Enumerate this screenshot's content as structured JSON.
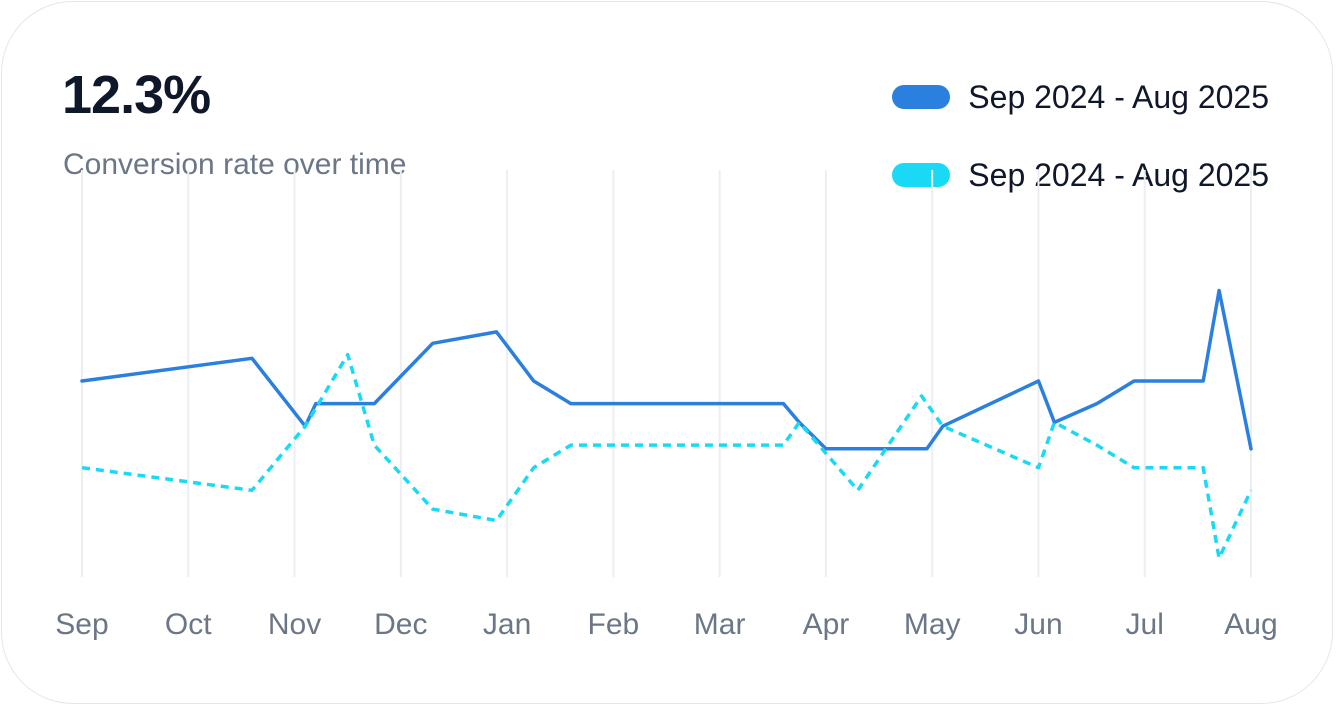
{
  "header": {
    "value": "12.3%",
    "subtitle": "Conversion rate over time"
  },
  "colors": {
    "series_primary": "#2b7fde",
    "series_secondary": "#1ad9f5",
    "grid": "#eceef1",
    "tick_text": "#6b7686"
  },
  "chart_data": {
    "type": "line",
    "x_categories": [
      "Sep",
      "Oct",
      "Nov",
      "Dec",
      "Jan",
      "Feb",
      "Mar",
      "Apr",
      "May",
      "Jun",
      "Jul",
      "Aug"
    ],
    "ylim": [
      0,
      1
    ],
    "grid": "vertical",
    "legend_position": "top-right",
    "series": [
      {
        "name": "Sep 2024 - Aug 2025",
        "style": "solid",
        "color": "#2b7fde",
        "points": [
          {
            "x": 0,
            "y": 0.52
          },
          {
            "x": 1.6,
            "y": 0.58
          },
          {
            "x": 2.1,
            "y": 0.4
          },
          {
            "x": 2.2,
            "y": 0.46
          },
          {
            "x": 2.75,
            "y": 0.46
          },
          {
            "x": 3.3,
            "y": 0.62
          },
          {
            "x": 3.9,
            "y": 0.65
          },
          {
            "x": 4.25,
            "y": 0.52
          },
          {
            "x": 4.6,
            "y": 0.46
          },
          {
            "x": 6.6,
            "y": 0.46
          },
          {
            "x": 6.75,
            "y": 0.41
          },
          {
            "x": 7.0,
            "y": 0.34
          },
          {
            "x": 7.95,
            "y": 0.34
          },
          {
            "x": 8.1,
            "y": 0.4
          },
          {
            "x": 9.0,
            "y": 0.52
          },
          {
            "x": 9.15,
            "y": 0.41
          },
          {
            "x": 9.55,
            "y": 0.46
          },
          {
            "x": 9.9,
            "y": 0.52
          },
          {
            "x": 10.55,
            "y": 0.52
          },
          {
            "x": 10.7,
            "y": 0.76
          },
          {
            "x": 11.0,
            "y": 0.34
          }
        ]
      },
      {
        "name": "Sep 2024 - Aug 2025",
        "style": "dashed",
        "color": "#1ad9f5",
        "points": [
          {
            "x": 0,
            "y": 0.29
          },
          {
            "x": 1.6,
            "y": 0.23
          },
          {
            "x": 2.1,
            "y": 0.4
          },
          {
            "x": 2.5,
            "y": 0.59
          },
          {
            "x": 2.75,
            "y": 0.35
          },
          {
            "x": 3.3,
            "y": 0.18
          },
          {
            "x": 3.9,
            "y": 0.15
          },
          {
            "x": 4.25,
            "y": 0.29
          },
          {
            "x": 4.6,
            "y": 0.35
          },
          {
            "x": 6.6,
            "y": 0.35
          },
          {
            "x": 6.75,
            "y": 0.41
          },
          {
            "x": 7.3,
            "y": 0.23
          },
          {
            "x": 7.9,
            "y": 0.48
          },
          {
            "x": 8.1,
            "y": 0.4
          },
          {
            "x": 9.0,
            "y": 0.29
          },
          {
            "x": 9.15,
            "y": 0.41
          },
          {
            "x": 9.55,
            "y": 0.35
          },
          {
            "x": 9.9,
            "y": 0.29
          },
          {
            "x": 10.55,
            "y": 0.29
          },
          {
            "x": 10.7,
            "y": 0.05
          },
          {
            "x": 11.0,
            "y": 0.23
          }
        ]
      }
    ]
  }
}
